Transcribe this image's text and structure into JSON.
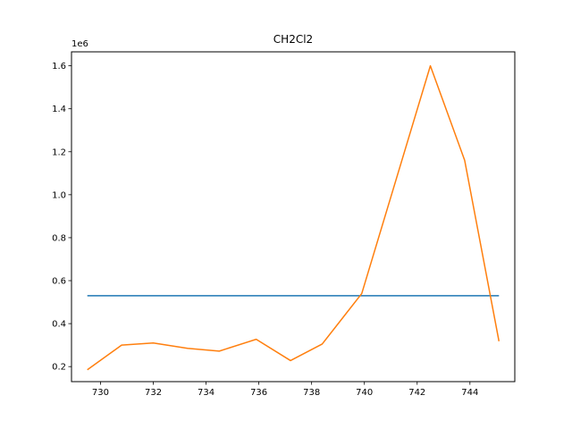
{
  "chart_data": {
    "type": "line",
    "title": "CH2Cl2",
    "xlabel": "",
    "ylabel": "",
    "y_scale_label": "1e6",
    "xlim": [
      728.9,
      745.7
    ],
    "ylim": [
      0.13,
      1.665
    ],
    "x_ticks": [
      730,
      732,
      734,
      736,
      738,
      740,
      742,
      744
    ],
    "y_ticks": [
      0.2,
      0.4,
      0.6,
      0.8,
      1.0,
      1.2,
      1.4,
      1.6
    ],
    "x_tick_labels": [
      "730",
      "732",
      "734",
      "736",
      "738",
      "740",
      "742",
      "744"
    ],
    "y_tick_labels": [
      "0.2",
      "0.4",
      "0.6",
      "0.8",
      "1.0",
      "1.2",
      "1.4",
      "1.6"
    ],
    "grid": false,
    "series": [
      {
        "color": "#1f77b4",
        "x": [
          729.5,
          745.1
        ],
        "y": [
          0.53,
          0.53
        ]
      },
      {
        "color": "#ff7f0e",
        "x": [
          729.5,
          730.8,
          732.0,
          733.3,
          734.5,
          735.9,
          737.2,
          738.4,
          739.9,
          741.2,
          742.5,
          743.8,
          745.1
        ],
        "y": [
          0.185,
          0.3,
          0.31,
          0.285,
          0.272,
          0.327,
          0.228,
          0.305,
          0.54,
          1.07,
          1.6,
          1.16,
          0.318
        ]
      }
    ]
  }
}
